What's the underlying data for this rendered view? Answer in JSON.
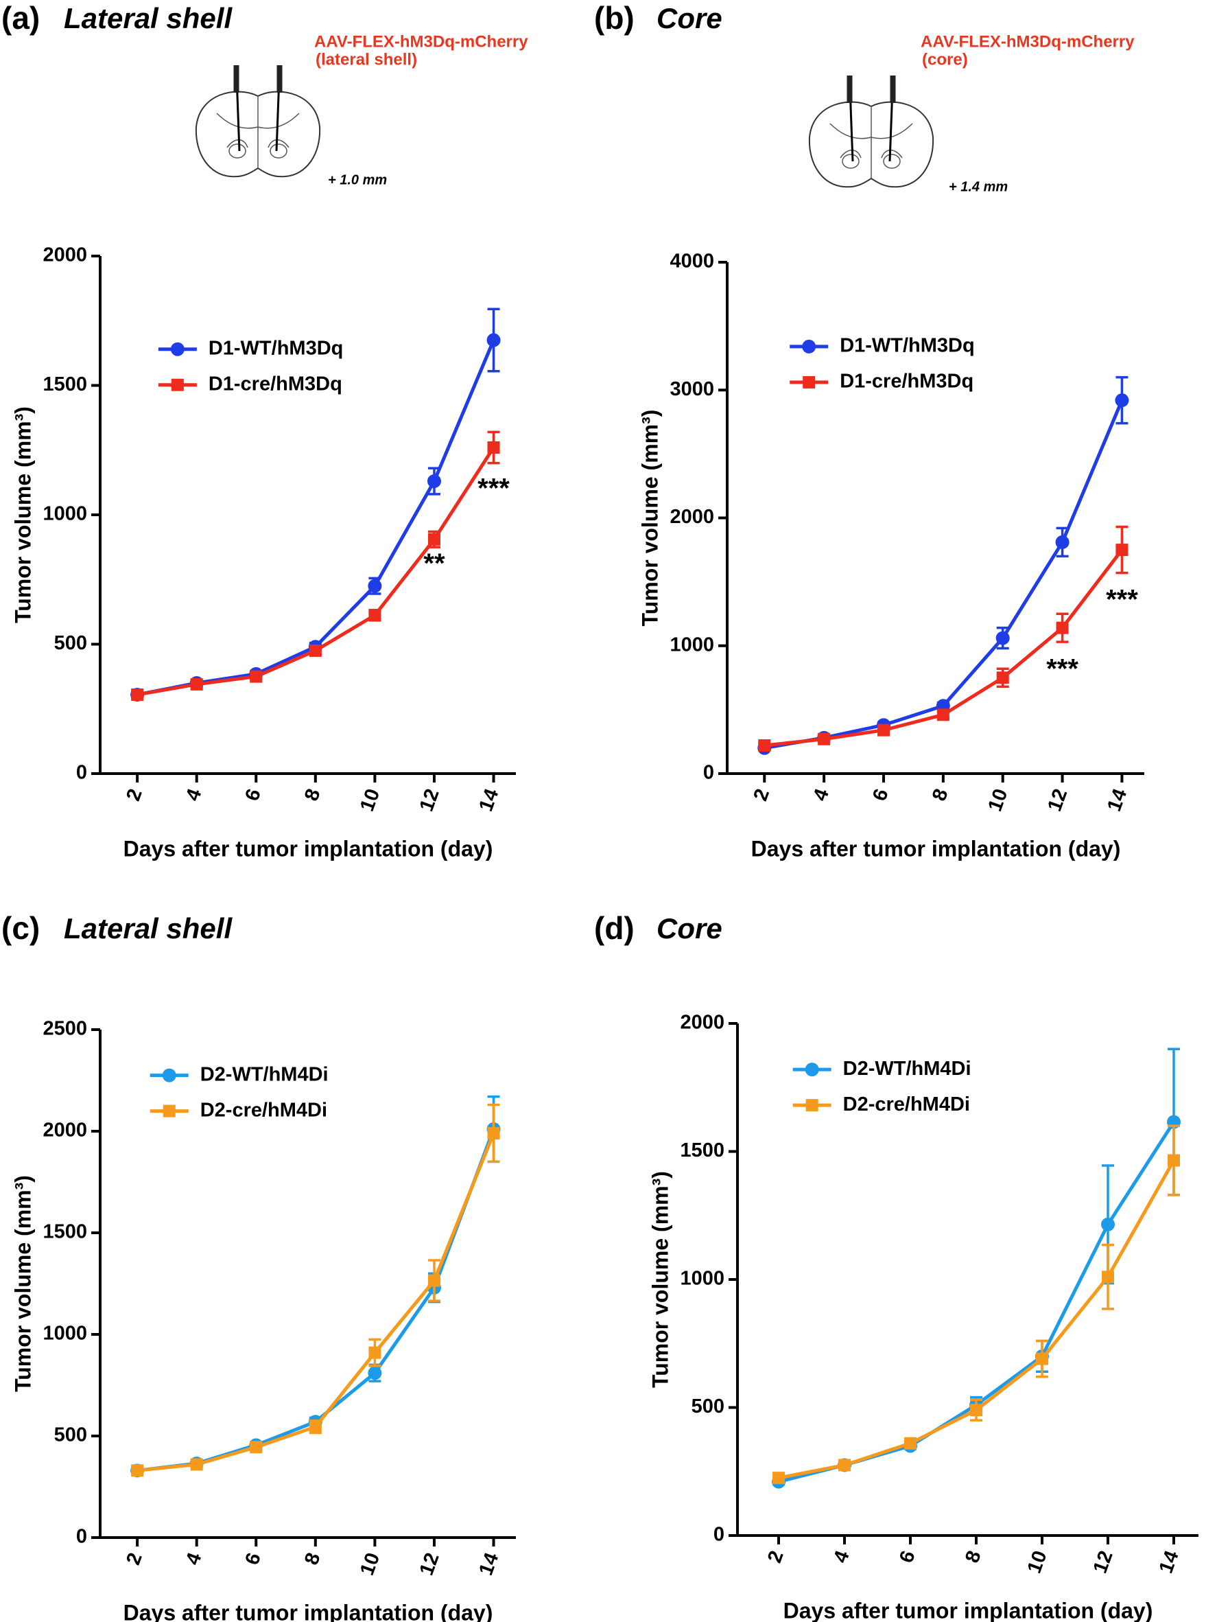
{
  "chart_data": [
    {
      "type": "line",
      "label": "(a)",
      "title": "Lateral shell",
      "inset_text": [
        "AAV-FLEX-hM3Dq-mCherry",
        "(lateral shell)",
        "+ 1.0 mm"
      ],
      "x_label": "Days after tumor implantation (day)",
      "y_label": "Tumor volume (mm³)",
      "x": [
        2,
        4,
        6,
        8,
        10,
        12,
        14
      ],
      "xlim": [
        0.75,
        14.75
      ],
      "xticks": [
        2,
        4,
        6,
        8,
        10,
        12,
        14
      ],
      "ylim": [
        0,
        2000
      ],
      "yticks": [
        0,
        500,
        1000,
        1500,
        2000
      ],
      "series": [
        {
          "name": "D1-WT/hM3Dq",
          "color": "#1f3de6",
          "marker": "circle",
          "values": [
            305,
            350,
            385,
            490,
            725,
            1130,
            1675
          ],
          "errors": [
            10,
            12,
            12,
            15,
            30,
            50,
            120
          ]
        },
        {
          "name": "D1-cre/hM3Dq",
          "color": "#ee2b1c",
          "marker": "square",
          "values": [
            305,
            345,
            375,
            475,
            612,
            905,
            1260
          ],
          "errors": [
            10,
            12,
            12,
            15,
            20,
            30,
            60
          ]
        }
      ],
      "annotations": [
        {
          "text": "**",
          "x": 12,
          "y": 805
        },
        {
          "text": "***",
          "x": 14,
          "y": 1096
        }
      ]
    },
    {
      "type": "line",
      "label": "(b)",
      "title": "Core",
      "inset_text": [
        "AAV-FLEX-hM3Dq-mCherry",
        "(core)",
        "+ 1.4 mm"
      ],
      "x_label": "Days after tumor implantation (day)",
      "y_label": "Tumor volume (mm³)",
      "x": [
        2,
        4,
        6,
        8,
        10,
        12,
        14
      ],
      "xlim": [
        0.75,
        14.75
      ],
      "xticks": [
        2,
        4,
        6,
        8,
        10,
        12,
        14
      ],
      "ylim": [
        0,
        4000
      ],
      "yticks": [
        0,
        1000,
        2000,
        3000,
        4000
      ],
      "series": [
        {
          "name": "D1-WT/hM3Dq",
          "color": "#1f3de6",
          "marker": "circle",
          "values": [
            200,
            280,
            380,
            530,
            1060,
            1810,
            2920
          ],
          "errors": [
            15,
            20,
            20,
            25,
            80,
            110,
            180
          ]
        },
        {
          "name": "D1-cre/hM3Dq",
          "color": "#ee2b1c",
          "marker": "square",
          "values": [
            220,
            270,
            340,
            460,
            750,
            1140,
            1750
          ],
          "errors": [
            15,
            20,
            20,
            25,
            70,
            110,
            180
          ]
        }
      ],
      "annotations": [
        {
          "text": "***",
          "x": 12,
          "y": 806
        },
        {
          "text": "***",
          "x": 14,
          "y": 1347
        }
      ]
    },
    {
      "type": "line",
      "label": "(c)",
      "title": "Lateral shell",
      "x_label": "Days after tumor implantation (day)",
      "y_label": "Tumor volume (mm³)",
      "x": [
        2,
        4,
        6,
        8,
        10,
        12,
        14
      ],
      "xlim": [
        0.75,
        14.75
      ],
      "xticks": [
        2,
        4,
        6,
        8,
        10,
        12,
        14
      ],
      "ylim": [
        0,
        2500
      ],
      "yticks": [
        0,
        500,
        1000,
        1500,
        2000,
        2500
      ],
      "series": [
        {
          "name": "D2-WT/hM4Di",
          "color": "#1e9be8",
          "marker": "circle",
          "values": [
            330,
            365,
            455,
            570,
            810,
            1230,
            2010
          ],
          "errors": [
            10,
            12,
            15,
            20,
            40,
            70,
            160
          ]
        },
        {
          "name": "D2-cre/hM4Di",
          "color": "#f59a1c",
          "marker": "square",
          "values": [
            330,
            360,
            445,
            545,
            910,
            1265,
            1990
          ],
          "errors": [
            10,
            12,
            15,
            30,
            65,
            100,
            140
          ]
        }
      ]
    },
    {
      "type": "line",
      "label": "(d)",
      "title": "Core",
      "x_label": "Days after tumor implantation (day)",
      "y_label": "Tumor volume (mm³)",
      "x": [
        2,
        4,
        6,
        8,
        10,
        12,
        14
      ],
      "xlim": [
        0.75,
        14.75
      ],
      "xticks": [
        2,
        4,
        6,
        8,
        10,
        12,
        14
      ],
      "ylim": [
        0,
        2000
      ],
      "yticks": [
        0,
        500,
        1000,
        1500,
        2000
      ],
      "series": [
        {
          "name": "D2-WT/hM4Di",
          "color": "#1e9be8",
          "marker": "circle",
          "values": [
            210,
            275,
            350,
            510,
            700,
            1215,
            1615
          ],
          "errors": [
            10,
            12,
            12,
            30,
            60,
            230,
            285
          ]
        },
        {
          "name": "D2-cre/hM4Di",
          "color": "#f59a1c",
          "marker": "square",
          "values": [
            225,
            275,
            360,
            490,
            690,
            1010,
            1465
          ],
          "errors": [
            10,
            12,
            12,
            40,
            70,
            125,
            135
          ]
        }
      ]
    }
  ]
}
